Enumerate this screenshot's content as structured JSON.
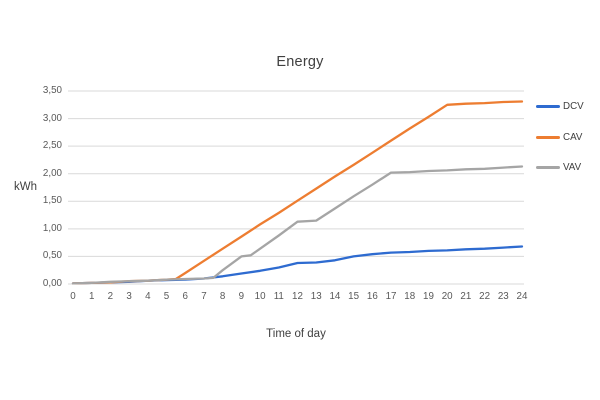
{
  "title": "Energy",
  "y_axis": {
    "label": "kWh",
    "tick_values": [
      0,
      0.5,
      1,
      1.5,
      2,
      2.5,
      3,
      3.5
    ],
    "tick_labels": [
      "0,00",
      "0,50",
      "1,00",
      "1,50",
      "2,00",
      "2,50",
      "3,00",
      "3,50"
    ],
    "min": 0,
    "max": 3.5
  },
  "x_axis": {
    "label": "Time of day",
    "tick_values": [
      0,
      1,
      2,
      3,
      4,
      5,
      6,
      7,
      8,
      9,
      10,
      11,
      12,
      13,
      14,
      15,
      16,
      17,
      18,
      19,
      20,
      21,
      22,
      23,
      24
    ],
    "tick_labels": [
      "0",
      "1",
      "2",
      "3",
      "4",
      "5",
      "6",
      "7",
      "8",
      "9",
      "10",
      "11",
      "12",
      "13",
      "14",
      "15",
      "16",
      "17",
      "18",
      "19",
      "20",
      "21",
      "22",
      "23",
      "24"
    ],
    "min": 0,
    "max": 24
  },
  "legend": [
    {
      "name": "DCV",
      "color": "#2e6bd0"
    },
    {
      "name": "CAV",
      "color": "#ed7d31"
    },
    {
      "name": "VAV",
      "color": "#a5a5a5"
    }
  ],
  "colors": {
    "gridline": "#d9d9d9",
    "title_text": "#404040",
    "tick_text": "#595959"
  },
  "chart_data": {
    "type": "line",
    "title": "Energy",
    "xlabel": "Time of day",
    "ylabel": "kWh",
    "xlim": [
      0,
      24
    ],
    "ylim": [
      0,
      3.5
    ],
    "grid": true,
    "legend_position": "right",
    "series": [
      {
        "name": "DCV",
        "color": "#2e6bd0",
        "points": [
          [
            0,
            0.01
          ],
          [
            1,
            0.02
          ],
          [
            2,
            0.03
          ],
          [
            3,
            0.04
          ],
          [
            4,
            0.06
          ],
          [
            5,
            0.07
          ],
          [
            6,
            0.08
          ],
          [
            7,
            0.1
          ],
          [
            8,
            0.14
          ],
          [
            9,
            0.19
          ],
          [
            10,
            0.24
          ],
          [
            11,
            0.3
          ],
          [
            12,
            0.38
          ],
          [
            13,
            0.39
          ],
          [
            14,
            0.43
          ],
          [
            15,
            0.5
          ],
          [
            16,
            0.54
          ],
          [
            17,
            0.57
          ],
          [
            18,
            0.58
          ],
          [
            19,
            0.6
          ],
          [
            20,
            0.61
          ],
          [
            21,
            0.63
          ],
          [
            22,
            0.64
          ],
          [
            23,
            0.66
          ],
          [
            24,
            0.68
          ]
        ]
      },
      {
        "name": "CAV",
        "color": "#ed7d31",
        "points": [
          [
            0,
            0.01
          ],
          [
            1,
            0.02
          ],
          [
            2,
            0.03
          ],
          [
            3,
            0.05
          ],
          [
            4,
            0.06
          ],
          [
            5,
            0.08
          ],
          [
            5.5,
            0.09
          ],
          [
            6,
            0.2
          ],
          [
            7,
            0.42
          ],
          [
            8,
            0.64
          ],
          [
            9,
            0.86
          ],
          [
            10,
            1.08
          ],
          [
            11,
            1.29
          ],
          [
            12,
            1.51
          ],
          [
            13,
            1.73
          ],
          [
            14,
            1.95
          ],
          [
            15,
            2.16
          ],
          [
            16,
            2.38
          ],
          [
            17,
            2.6
          ],
          [
            18,
            2.82
          ],
          [
            19,
            3.03
          ],
          [
            20,
            3.25
          ],
          [
            21,
            3.27
          ],
          [
            22,
            3.28
          ],
          [
            23,
            3.3
          ],
          [
            24,
            3.31
          ]
        ]
      },
      {
        "name": "VAV",
        "color": "#a5a5a5",
        "points": [
          [
            0,
            0.01
          ],
          [
            1,
            0.02
          ],
          [
            2,
            0.04
          ],
          [
            3,
            0.05
          ],
          [
            4,
            0.06
          ],
          [
            5,
            0.08
          ],
          [
            6,
            0.09
          ],
          [
            7,
            0.1
          ],
          [
            7.5,
            0.11
          ],
          [
            8,
            0.25
          ],
          [
            9,
            0.5
          ],
          [
            9.5,
            0.52
          ],
          [
            10,
            0.64
          ],
          [
            11,
            0.88
          ],
          [
            12,
            1.13
          ],
          [
            13,
            1.15
          ],
          [
            14,
            1.37
          ],
          [
            15,
            1.59
          ],
          [
            16,
            1.8
          ],
          [
            17,
            2.02
          ],
          [
            18,
            2.03
          ],
          [
            19,
            2.05
          ],
          [
            20,
            2.06
          ],
          [
            21,
            2.08
          ],
          [
            22,
            2.09
          ],
          [
            23,
            2.11
          ],
          [
            24,
            2.13
          ]
        ]
      }
    ]
  }
}
